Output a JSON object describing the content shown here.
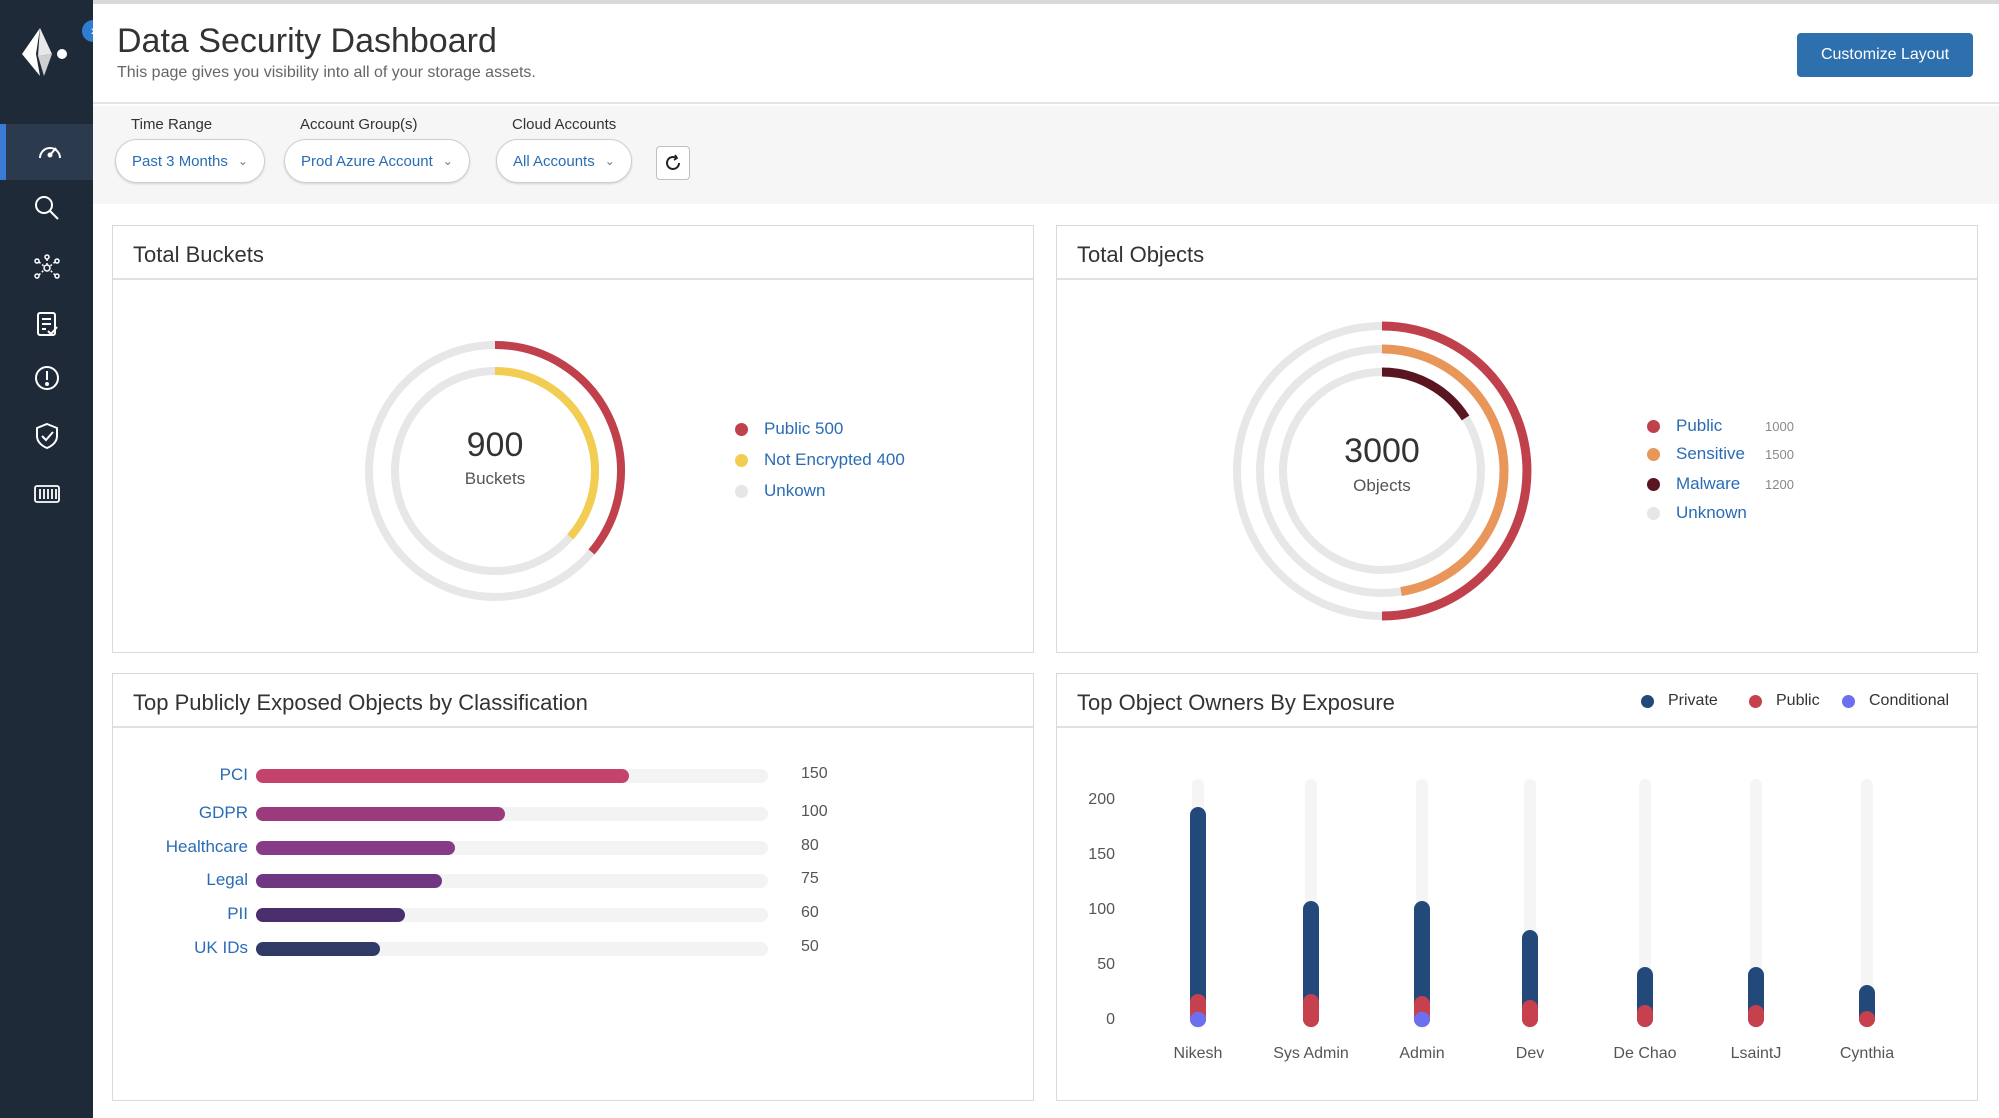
{
  "header": {
    "title": "Data Security Dashboard",
    "subtitle": "This page gives you visibility into all of your storage assets.",
    "customize_label": "Customize Layout"
  },
  "filters": {
    "time_range": {
      "label": "Time Range",
      "value": "Past 3 Months"
    },
    "account_groups": {
      "label": "Account Group(s)",
      "value": "Prod Azure Account"
    },
    "cloud_accounts": {
      "label": "Cloud Accounts",
      "value": "All Accounts"
    }
  },
  "sidebar": {
    "items": [
      "dashboard-icon",
      "search-icon",
      "network-icon",
      "checklist-icon",
      "alert-icon",
      "shield-check-icon",
      "storage-icon"
    ]
  },
  "total_buckets": {
    "title": "Total Buckets",
    "total": "900",
    "unit": "Buckets",
    "legend": [
      {
        "label": "Public 500",
        "color": "#c0404c"
      },
      {
        "label": "Not Encrypted 400",
        "color": "#f2cd52"
      },
      {
        "label": "Unkown",
        "color": "#e6e6e6"
      }
    ]
  },
  "total_objects": {
    "title": "Total Objects",
    "total": "3000",
    "unit": "Objects",
    "legend": [
      {
        "label": "Public",
        "value": "1000",
        "color": "#c0404c"
      },
      {
        "label": "Sensitive",
        "value": "1500",
        "color": "#e8965a"
      },
      {
        "label": "Malware",
        "value": "1200",
        "color": "#5a1620"
      },
      {
        "label": "Unknown",
        "value": "",
        "color": "#e6e6e6"
      }
    ]
  },
  "classification": {
    "title": "Top Publicly Exposed Objects by Classification"
  },
  "owners": {
    "title": "Top Object Owners By Exposure",
    "legend": [
      {
        "label": "Private",
        "color": "#22497a"
      },
      {
        "label": "Public",
        "color": "#c7404d"
      },
      {
        "label": "Conditional",
        "color": "#6b6ff0"
      }
    ]
  },
  "chart_data": [
    {
      "type": "pie",
      "title": "Total Buckets",
      "categories": [
        "Public",
        "Not Encrypted",
        "Unkown"
      ],
      "values": [
        500,
        400,
        null
      ]
    },
    {
      "type": "pie",
      "title": "Total Objects",
      "categories": [
        "Public",
        "Sensitive",
        "Malware",
        "Unknown"
      ],
      "values": [
        1000,
        1500,
        1200,
        null
      ]
    },
    {
      "type": "bar",
      "title": "Top Publicly Exposed Objects by Classification",
      "categories": [
        "PCI",
        "GDPR",
        "Healthcare",
        "Legal",
        "PII",
        "UK IDs"
      ],
      "values": [
        150,
        100,
        80,
        75,
        60,
        50
      ],
      "colors": [
        "#c4436a",
        "#9c3b7c",
        "#873b86",
        "#6f3782",
        "#4a2f6c",
        "#2f3a66"
      ]
    },
    {
      "type": "bar",
      "title": "Top Object Owners By Exposure",
      "categories": [
        "Nikesh",
        "Sys Admin",
        "Admin",
        "Dev",
        "De Chao",
        "LsaintJ",
        "Cynthia"
      ],
      "ylim": [
        0,
        200
      ],
      "yticks": [
        0,
        50,
        100,
        150,
        200
      ],
      "series": [
        {
          "name": "Private",
          "values": [
            200,
            115,
            115,
            88,
            55,
            55,
            38
          ]
        },
        {
          "name": "Public",
          "values": [
            30,
            30,
            28,
            25,
            20,
            20,
            15
          ]
        },
        {
          "name": "Conditional",
          "values": [
            10,
            0,
            10,
            0,
            0,
            0,
            0
          ]
        }
      ]
    }
  ]
}
